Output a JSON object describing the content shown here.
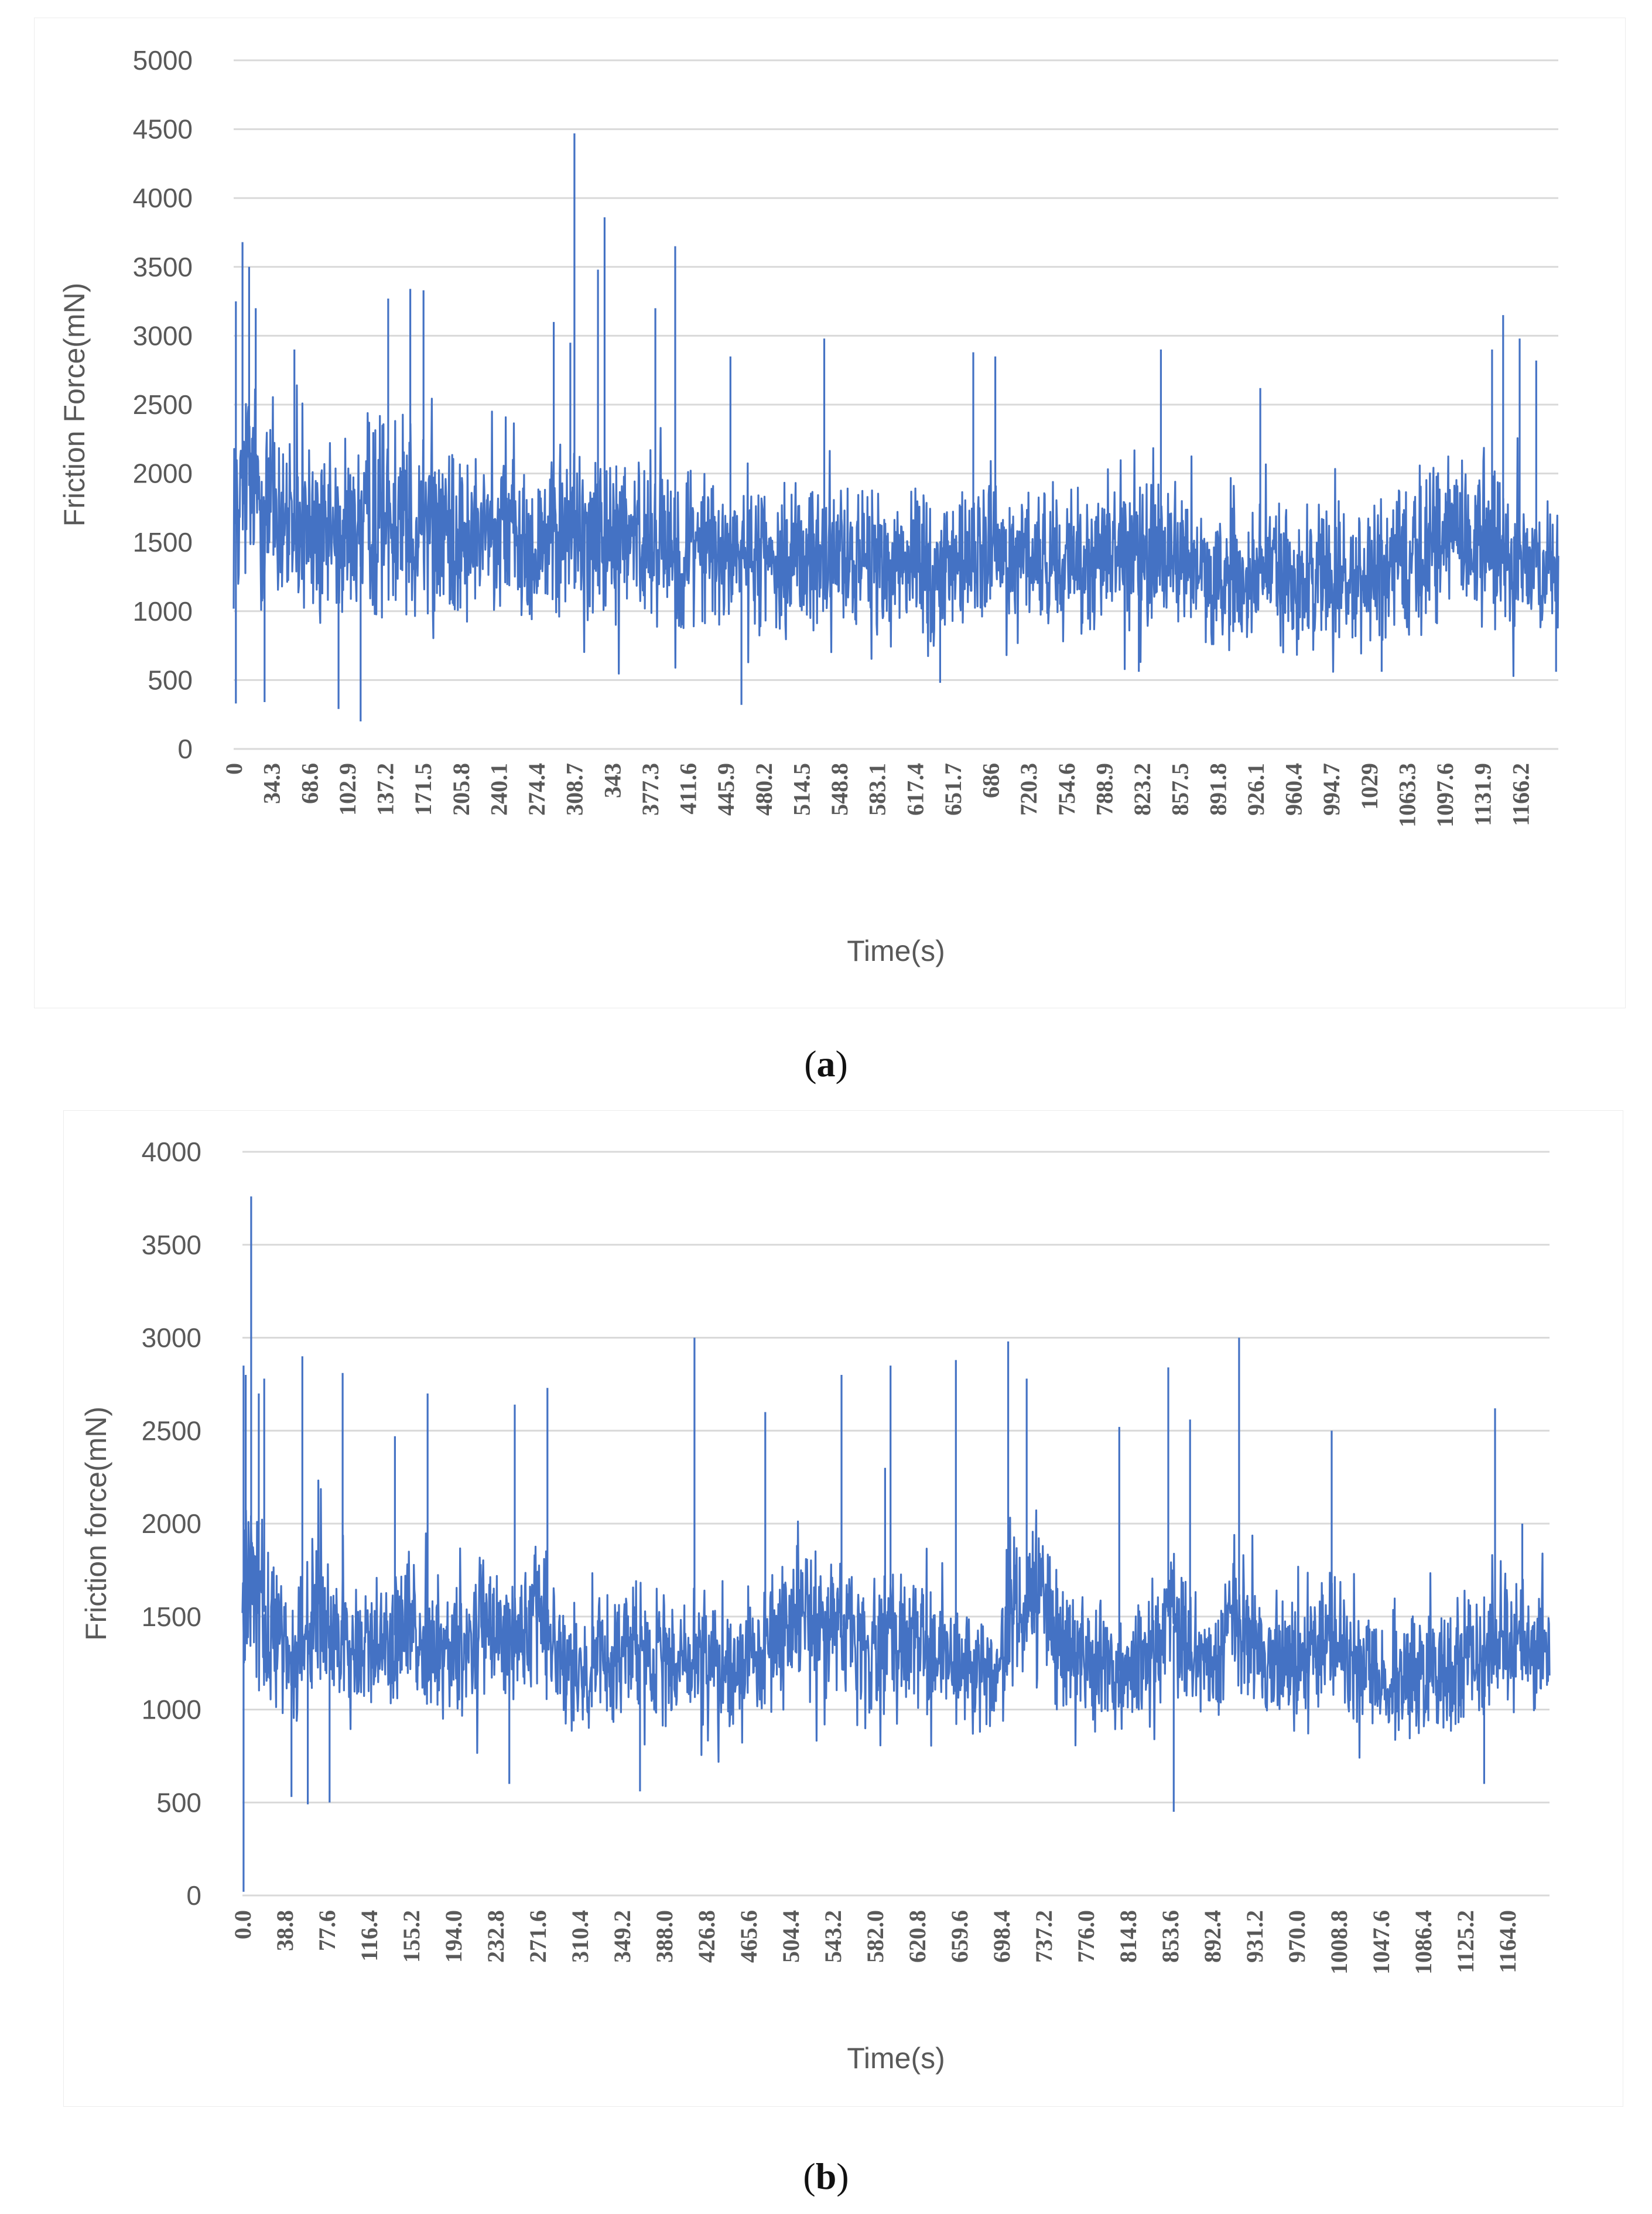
{
  "figures": [
    {
      "label": "a",
      "caption_text": "(a)"
    },
    {
      "label": "b",
      "caption_text": "(b)"
    }
  ],
  "colors": {
    "series": "#4472C4",
    "grid": "#d9d9d9",
    "axis_text": "#595959"
  },
  "chart_data": [
    {
      "type": "line",
      "label": "a",
      "title": "",
      "xlabel": "Time(s)",
      "ylabel": "Friction Force(mN)",
      "ylim": [
        0,
        5000
      ],
      "yticks": [
        0,
        500,
        1000,
        1500,
        2000,
        2500,
        3000,
        3500,
        4000,
        4500,
        5000
      ],
      "xlim": [
        0,
        1200
      ],
      "xtick_labels": [
        "0",
        "34.3",
        "68.6",
        "102.9",
        "137.2",
        "171.5",
        "205.8",
        "240.1",
        "274.4",
        "308.7",
        "343",
        "377.3",
        "411.6",
        "445.9",
        "480.2",
        "514.5",
        "548.8",
        "583.1",
        "617.4",
        "651.7",
        "686",
        "720.3",
        "754.6",
        "788.9",
        "823.2",
        "857.5",
        "891.8",
        "926.1",
        "960.4",
        "994.7",
        "1029",
        "1063.3",
        "1097.6",
        "1131.9",
        "1166.2"
      ],
      "grid": true,
      "legend": "none",
      "series": [
        {
          "name": "Friction Force",
          "color": "#4472C4",
          "x": [
            0,
            10,
            20,
            40,
            60,
            80,
            100,
            120,
            140,
            160,
            180,
            200,
            240,
            280,
            300,
            320,
            340,
            360,
            380,
            400,
            440,
            480,
            520,
            560,
            600,
            640,
            680,
            720,
            760,
            800,
            840,
            880,
            900,
            940,
            980,
            1020,
            1060,
            1100,
            1140,
            1170,
            1200
          ],
          "mean": [
            1750,
            1950,
            1850,
            1650,
            1600,
            1600,
            1580,
            1650,
            1700,
            1700,
            1650,
            1550,
            1500,
            1550,
            1600,
            1550,
            1550,
            1500,
            1500,
            1500,
            1420,
            1400,
            1400,
            1380,
            1320,
            1300,
            1400,
            1400,
            1380,
            1420,
            1450,
            1300,
            1250,
            1280,
            1260,
            1280,
            1400,
            1500,
            1500,
            1350,
            1250
          ],
          "band": [
            800,
            1000,
            950,
            850,
            800,
            800,
            800,
            850,
            850,
            850,
            800,
            750,
            700,
            750,
            800,
            750,
            750,
            700,
            700,
            700,
            650,
            650,
            650,
            600,
            600,
            600,
            650,
            650,
            650,
            650,
            650,
            600,
            600,
            600,
            600,
            600,
            650,
            700,
            700,
            650,
            600
          ],
          "spikes": [
            [
              2,
              3250
            ],
            [
              8,
              3680
            ],
            [
              14,
              3500
            ],
            [
              20,
              3200
            ],
            [
              55,
              2900
            ],
            [
              140,
              3270
            ],
            [
              160,
              3340
            ],
            [
              172,
              3330
            ],
            [
              290,
              3100
            ],
            [
              305,
              2950
            ],
            [
              308.7,
              4470
            ],
            [
              330,
              3480
            ],
            [
              336,
              3860
            ],
            [
              382,
              3200
            ],
            [
              400,
              3650
            ],
            [
              450,
              2850
            ],
            [
              535,
              2980
            ],
            [
              670,
              2880
            ],
            [
              690,
              2850
            ],
            [
              840,
              2900
            ],
            [
              930,
              2620
            ],
            [
              1140,
              2900
            ],
            [
              1150,
              3150
            ],
            [
              1165,
              2980
            ],
            [
              1180,
              2820
            ]
          ],
          "dips": [
            [
              2,
              330
            ],
            [
              28,
              340
            ],
            [
              95,
              290
            ],
            [
              115,
              200
            ],
            [
              460,
              320
            ],
            [
              640,
              480
            ],
            [
              820,
              560
            ],
            [
              1040,
              560
            ],
            [
              1198,
              560
            ]
          ]
        }
      ]
    },
    {
      "type": "line",
      "label": "b",
      "title": "",
      "xlabel": "Time(s)",
      "ylabel": "Friction force(mN)",
      "ylim": [
        0,
        4000
      ],
      "yticks": [
        0,
        500,
        1000,
        1500,
        2000,
        2500,
        3000,
        3500,
        4000
      ],
      "xlim": [
        0,
        1200
      ],
      "xtick_labels": [
        "0.0",
        "38.8",
        "77.6",
        "116.4",
        "155.2",
        "194.0",
        "232.8",
        "271.6",
        "310.4",
        "349.2",
        "388.0",
        "426.8",
        "465.6",
        "504.4",
        "543.2",
        "582.0",
        "620.8",
        "659.6",
        "698.4",
        "737.2",
        "776.0",
        "814.8",
        "853.6",
        "892.4",
        "931.2",
        "970.0",
        "1008.8",
        "1047.6",
        "1086.4",
        "1125.2",
        "1164.0"
      ],
      "grid": true,
      "legend": "none",
      "series": [
        {
          "name": "Friction force",
          "color": "#4472C4",
          "x": [
            0,
            10,
            30,
            50,
            70,
            90,
            110,
            130,
            150,
            170,
            190,
            210,
            230,
            250,
            270,
            290,
            310,
            330,
            360,
            390,
            420,
            450,
            480,
            510,
            540,
            570,
            600,
            630,
            660,
            690,
            710,
            730,
            750,
            780,
            810,
            830,
            850,
            870,
            890,
            910,
            940,
            970,
            1000,
            1020,
            1040,
            1070,
            1100,
            1130,
            1160,
            1180,
            1200
          ],
          "mean": [
            1500,
            1700,
            1350,
            1300,
            1550,
            1350,
            1300,
            1350,
            1450,
            1350,
            1300,
            1350,
            1450,
            1350,
            1500,
            1300,
            1200,
            1250,
            1350,
            1250,
            1300,
            1200,
            1350,
            1450,
            1500,
            1350,
            1450,
            1300,
            1250,
            1200,
            1500,
            1650,
            1350,
            1250,
            1200,
            1250,
            1500,
            1300,
            1200,
            1500,
            1300,
            1250,
            1400,
            1300,
            1150,
            1200,
            1250,
            1300,
            1350,
            1300,
            1350
          ],
          "band": [
            550,
            650,
            450,
            450,
            550,
            450,
            420,
            450,
            500,
            450,
            420,
            450,
            500,
            450,
            500,
            420,
            380,
            400,
            430,
            400,
            420,
            380,
            430,
            480,
            500,
            430,
            480,
            420,
            400,
            380,
            500,
            550,
            430,
            400,
            380,
            400,
            480,
            420,
            380,
            480,
            420,
            400,
            450,
            420,
            380,
            400,
            420,
            420,
            450,
            420,
            420
          ],
          "spikes": [
            [
              1,
              2850
            ],
            [
              3,
              2800
            ],
            [
              8,
              3760
            ],
            [
              15,
              2700
            ],
            [
              20,
              2780
            ],
            [
              55,
              2900
            ],
            [
              92,
              2810
            ],
            [
              140,
              2470
            ],
            [
              170,
              2700
            ],
            [
              250,
              2640
            ],
            [
              280,
              2730
            ],
            [
              415,
              3000
            ],
            [
              480,
              2600
            ],
            [
              550,
              2800
            ],
            [
              590,
              2300
            ],
            [
              595,
              2850
            ],
            [
              655,
              2880
            ],
            [
              703,
              2980
            ],
            [
              720,
              2780
            ],
            [
              805,
              2520
            ],
            [
              850,
              2840
            ],
            [
              870,
              2560
            ],
            [
              915,
              3000
            ],
            [
              1000,
              2500
            ],
            [
              1150,
              2620
            ],
            [
              1175,
              2000
            ]
          ],
          "dips": [
            [
              1,
              20
            ],
            [
              45,
              530
            ],
            [
              60,
              490
            ],
            [
              80,
              500
            ],
            [
              245,
              600
            ],
            [
              365,
              560
            ],
            [
              855,
              450
            ],
            [
              1140,
              600
            ]
          ]
        }
      ]
    }
  ]
}
